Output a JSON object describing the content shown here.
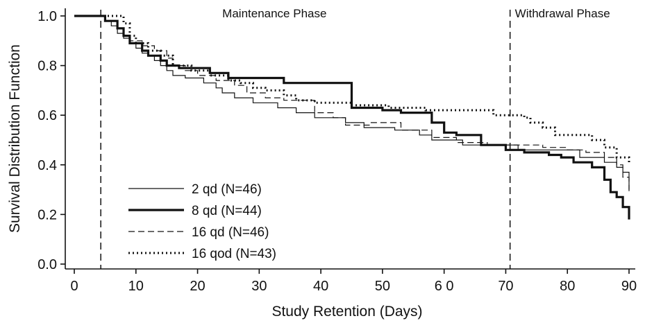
{
  "chart_data": {
    "type": "line",
    "step": true,
    "xlabel": "Study Retention (Days)",
    "ylabel": "Survival Distribution Function",
    "xlim": [
      0,
      90
    ],
    "ylim": [
      0.0,
      1.0
    ],
    "xticks": [
      0,
      10,
      20,
      30,
      40,
      50,
      60,
      70,
      80,
      90
    ],
    "xtick_labels": [
      "0",
      "10",
      "20",
      "30",
      "40",
      "50",
      "6 0",
      "70",
      "80",
      "90"
    ],
    "yticks": [
      0.0,
      0.2,
      0.4,
      0.6,
      0.8,
      1.0
    ],
    "ytick_labels": [
      "0.0",
      "0.2",
      "0.4",
      "0.6",
      "0.8",
      "1.0"
    ],
    "grid": false,
    "legend_position": "bottom-left",
    "reference_lines": [
      {
        "x": 4.3,
        "label": ""
      },
      {
        "x": 70.7,
        "label": ""
      }
    ],
    "phase_labels": [
      {
        "text": "Maintenance Phase",
        "x_range": [
          4.3,
          70.7
        ]
      },
      {
        "text": "Withdrawal Phase",
        "x_range": [
          70.7,
          90
        ]
      }
    ],
    "series": [
      {
        "name": "2 qd (N=46)",
        "style": "thin-solid",
        "points": [
          [
            0,
            1.0
          ],
          [
            5,
            0.98
          ],
          [
            6,
            0.96
          ],
          [
            7,
            0.93
          ],
          [
            8,
            0.91
          ],
          [
            9,
            0.89
          ],
          [
            10,
            0.87
          ],
          [
            11,
            0.85
          ],
          [
            12,
            0.84
          ],
          [
            13,
            0.82
          ],
          [
            14,
            0.8
          ],
          [
            15,
            0.78
          ],
          [
            16,
            0.76
          ],
          [
            18,
            0.75
          ],
          [
            21,
            0.73
          ],
          [
            23,
            0.71
          ],
          [
            24,
            0.69
          ],
          [
            26,
            0.67
          ],
          [
            29,
            0.65
          ],
          [
            33,
            0.63
          ],
          [
            36,
            0.61
          ],
          [
            39,
            0.59
          ],
          [
            44,
            0.57
          ],
          [
            47,
            0.55
          ],
          [
            52,
            0.54
          ],
          [
            56,
            0.52
          ],
          [
            58,
            0.5
          ],
          [
            63,
            0.48
          ],
          [
            69,
            0.48
          ],
          [
            72,
            0.46
          ],
          [
            76,
            0.46
          ],
          [
            82,
            0.43
          ],
          [
            86,
            0.41
          ],
          [
            88,
            0.39
          ],
          [
            89,
            0.37
          ],
          [
            90,
            0.3
          ]
        ]
      },
      {
        "name": "8 qd (N=44)",
        "style": "thick-solid",
        "points": [
          [
            0,
            1.0
          ],
          [
            5,
            0.98
          ],
          [
            7,
            0.95
          ],
          [
            8,
            0.92
          ],
          [
            9,
            0.89
          ],
          [
            11,
            0.86
          ],
          [
            12,
            0.84
          ],
          [
            14,
            0.82
          ],
          [
            15,
            0.8
          ],
          [
            17,
            0.79
          ],
          [
            22,
            0.77
          ],
          [
            25,
            0.75
          ],
          [
            29,
            0.75
          ],
          [
            34,
            0.73
          ],
          [
            45,
            0.63
          ],
          [
            50,
            0.62
          ],
          [
            53,
            0.61
          ],
          [
            58,
            0.57
          ],
          [
            60,
            0.53
          ],
          [
            62,
            0.52
          ],
          [
            66,
            0.48
          ],
          [
            70,
            0.46
          ],
          [
            73,
            0.45
          ],
          [
            77,
            0.44
          ],
          [
            79,
            0.43
          ],
          [
            81,
            0.41
          ],
          [
            84,
            0.39
          ],
          [
            86,
            0.34
          ],
          [
            87,
            0.29
          ],
          [
            88,
            0.27
          ],
          [
            89,
            0.23
          ],
          [
            90,
            0.18
          ]
        ]
      },
      {
        "name": "16 qd (N=46)",
        "style": "dashed",
        "points": [
          [
            0,
            1.0
          ],
          [
            5,
            0.98
          ],
          [
            7,
            0.95
          ],
          [
            8,
            0.92
          ],
          [
            9,
            0.9
          ],
          [
            11,
            0.88
          ],
          [
            13,
            0.86
          ],
          [
            15,
            0.83
          ],
          [
            16,
            0.8
          ],
          [
            18,
            0.78
          ],
          [
            20,
            0.76
          ],
          [
            23,
            0.74
          ],
          [
            26,
            0.72
          ],
          [
            28,
            0.69
          ],
          [
            31,
            0.67
          ],
          [
            34,
            0.66
          ],
          [
            39,
            0.61
          ],
          [
            42,
            0.59
          ],
          [
            44,
            0.56
          ],
          [
            48,
            0.57
          ],
          [
            53,
            0.54
          ],
          [
            58,
            0.51
          ],
          [
            62,
            0.49
          ],
          [
            67,
            0.48
          ],
          [
            72,
            0.48
          ],
          [
            76,
            0.47
          ],
          [
            80,
            0.46
          ],
          [
            83,
            0.45
          ],
          [
            86,
            0.43
          ],
          [
            88,
            0.4
          ],
          [
            89,
            0.35
          ],
          [
            90,
            0.28
          ]
        ]
      },
      {
        "name": "16 qod (N=43)",
        "style": "dotted",
        "points": [
          [
            0,
            1.0
          ],
          [
            7,
            1.0
          ],
          [
            8,
            0.97
          ],
          [
            9,
            0.92
          ],
          [
            10,
            0.89
          ],
          [
            12,
            0.86
          ],
          [
            14,
            0.84
          ],
          [
            16,
            0.8
          ],
          [
            19,
            0.78
          ],
          [
            22,
            0.76
          ],
          [
            25,
            0.74
          ],
          [
            27,
            0.73
          ],
          [
            29,
            0.71
          ],
          [
            31,
            0.7
          ],
          [
            34,
            0.68
          ],
          [
            36,
            0.66
          ],
          [
            39,
            0.65
          ],
          [
            45,
            0.64
          ],
          [
            51,
            0.63
          ],
          [
            57,
            0.62
          ],
          [
            67,
            0.62
          ],
          [
            68,
            0.6
          ],
          [
            71,
            0.6
          ],
          [
            73,
            0.59
          ],
          [
            74,
            0.57
          ],
          [
            76,
            0.55
          ],
          [
            78,
            0.52
          ],
          [
            81,
            0.52
          ],
          [
            84,
            0.5
          ],
          [
            86,
            0.47
          ],
          [
            88,
            0.43
          ],
          [
            90,
            0.4
          ]
        ]
      }
    ]
  }
}
